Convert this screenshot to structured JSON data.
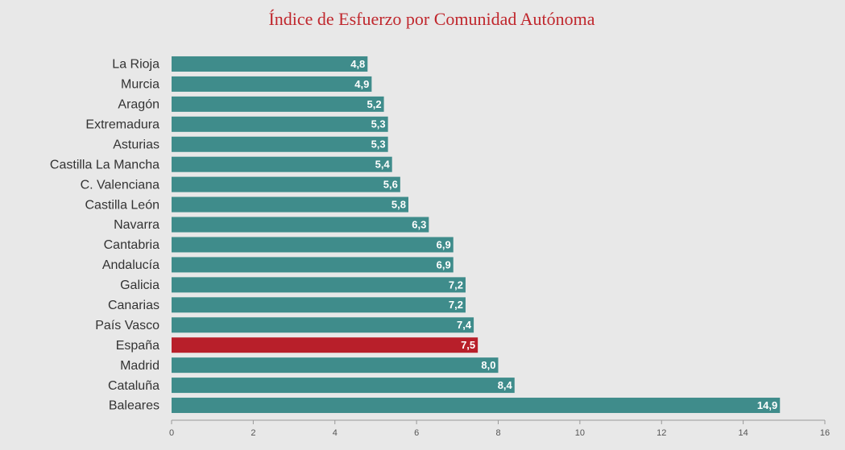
{
  "chart_data": {
    "type": "barh",
    "title": "Índice de Esfuerzo por Comunidad Autónoma",
    "categories": [
      "La Rioja",
      "Murcia",
      "Aragón",
      "Extremadura",
      "Asturias",
      "Castilla La Mancha",
      "C. Valenciana",
      "Castilla León",
      "Navarra",
      "Cantabria",
      "Andalucía",
      "Galicia",
      "Canarias",
      "País Vasco",
      "España",
      "Madrid",
      "Cataluña",
      "Baleares"
    ],
    "values": [
      4.8,
      4.9,
      5.2,
      5.3,
      5.3,
      5.4,
      5.6,
      5.8,
      6.3,
      6.9,
      6.9,
      7.2,
      7.2,
      7.4,
      7.5,
      8.0,
      8.4,
      14.9
    ],
    "value_labels": [
      "4,8",
      "4,9",
      "5,2",
      "5,3",
      "5,3",
      "5,4",
      "5,6",
      "5,8",
      "6,3",
      "6,9",
      "6,9",
      "7,2",
      "7,2",
      "7,4",
      "7,5",
      "8,0",
      "8,4",
      "14,9"
    ],
    "colors": [
      "#3f8c8b",
      "#3f8c8b",
      "#3f8c8b",
      "#3f8c8b",
      "#3f8c8b",
      "#3f8c8b",
      "#3f8c8b",
      "#3f8c8b",
      "#3f8c8b",
      "#3f8c8b",
      "#3f8c8b",
      "#3f8c8b",
      "#3f8c8b",
      "#3f8c8b",
      "#b81f2a",
      "#3f8c8b",
      "#3f8c8b",
      "#3f8c8b"
    ],
    "xlim": [
      0,
      16
    ],
    "xticks": [
      0,
      2,
      4,
      6,
      8,
      10,
      12,
      14,
      16
    ]
  }
}
